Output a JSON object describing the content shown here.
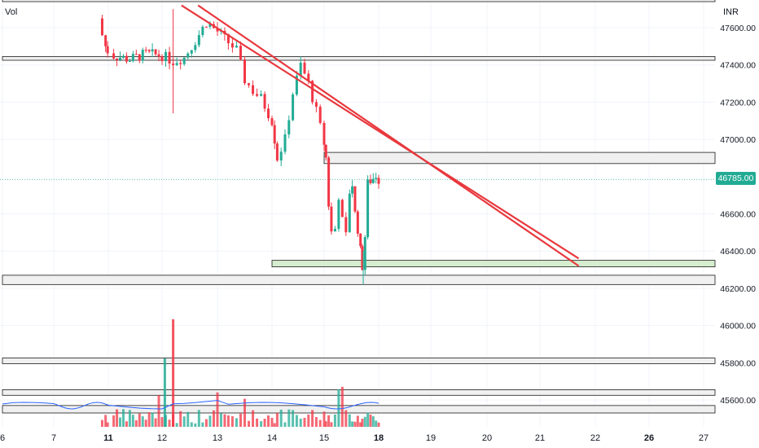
{
  "header": {
    "volume_label": "Vol",
    "currency": "INR"
  },
  "last_price": {
    "label": "46785.00",
    "value": 46785,
    "color": "#22ab94"
  },
  "colors": {
    "up": "#22ab94",
    "down": "#f23645",
    "trendline": "#e8383d",
    "support_zone": "#d6edcf",
    "zone": "#f0f0f0",
    "volume_ma": "#2962ff"
  },
  "chart_data": {
    "type": "candlestick",
    "y_axis": {
      "ticks": [
        47600,
        47400,
        47200,
        47000,
        46600,
        46400,
        46200,
        46000,
        45800,
        45600
      ],
      "tick_labels": [
        "47600.00",
        "47400.00",
        "47200.00",
        "47000.00",
        "46600.00",
        "46400.00",
        "46200.00",
        "46000.00",
        "45800.00",
        "45600.00"
      ]
    },
    "x_axis": {
      "ticks": [
        6,
        7,
        11,
        12,
        13,
        14,
        15,
        18,
        19,
        20,
        21,
        22,
        26,
        27
      ],
      "tick_labels": [
        "6",
        "7",
        "11",
        "12",
        "13",
        "14",
        "15",
        "18",
        "19",
        "20",
        "21",
        "22",
        "26",
        "27"
      ],
      "bold": [
        "11",
        "18",
        "26"
      ]
    },
    "candles_path": [
      [
        10.4,
        47650
      ],
      [
        10.55,
        47560
      ],
      [
        10.8,
        47500
      ],
      [
        11.1,
        47450
      ],
      [
        11.4,
        47430
      ],
      [
        11.7,
        47460
      ],
      [
        12.0,
        47450
      ],
      [
        12.2,
        47420
      ],
      [
        12.4,
        47440
      ],
      [
        12.6,
        47530
      ],
      [
        12.8,
        47630
      ],
      [
        13.0,
        47580
      ],
      [
        13.2,
        47520
      ],
      [
        13.35,
        47480
      ],
      [
        13.5,
        47320
      ],
      [
        13.65,
        47260
      ],
      [
        13.8,
        47220
      ],
      [
        14.0,
        47100
      ],
      [
        14.1,
        46900
      ],
      [
        14.25,
        47000
      ],
      [
        14.4,
        47250
      ],
      [
        14.55,
        47400
      ],
      [
        14.7,
        47300
      ],
      [
        14.85,
        47150
      ],
      [
        15.0,
        46980
      ],
      [
        15.1,
        46900
      ],
      [
        15.25,
        46650
      ],
      [
        15.4,
        46500
      ],
      [
        15.6,
        46520
      ],
      [
        15.8,
        46700
      ],
      [
        16.0,
        46560
      ],
      [
        16.2,
        46480
      ],
      [
        16.4,
        46720
      ],
      [
        16.55,
        46760
      ],
      [
        16.7,
        46600
      ],
      [
        16.85,
        46520
      ],
      [
        17.0,
        46400
      ],
      [
        17.1,
        46320
      ],
      [
        17.25,
        46480
      ],
      [
        17.4,
        46760
      ],
      [
        17.55,
        46780
      ],
      [
        17.7,
        46790
      ],
      [
        17.85,
        46810
      ],
      [
        18.0,
        46785
      ]
    ],
    "trendlines": [
      {
        "name": "",
        "start": [
          12.35,
          47720
        ],
        "end": [
          21.7,
          46360
        ]
      },
      {
        "name": "",
        "start": [
          12.65,
          47720
        ],
        "end": [
          21.7,
          46320
        ]
      }
    ],
    "zones": [
      {
        "y_top": 47760,
        "y_bottom": 47740,
        "x_start": 6,
        "x_end": 27.5,
        "kind": "resistance"
      },
      {
        "y_top": 47445,
        "y_bottom": 47425,
        "x_start": 6,
        "x_end": 27.5,
        "kind": "resistance"
      },
      {
        "y_top": 46930,
        "y_bottom": 46870,
        "x_start": 15.0,
        "x_end": 27.5,
        "kind": "resistance"
      },
      {
        "y_top": 46350,
        "y_bottom": 46315,
        "x_start": 14.0,
        "x_end": 27.5,
        "kind": "support"
      },
      {
        "y_top": 46270,
        "y_bottom": 46220,
        "x_start": 6,
        "x_end": 27.5,
        "kind": "support"
      },
      {
        "y_top": 45825,
        "y_bottom": 45795,
        "x_start": 6,
        "x_end": 27.5,
        "kind": "support"
      },
      {
        "y_top": 45655,
        "y_bottom": 45625,
        "x_start": 6,
        "x_end": 27.5,
        "kind": "support"
      },
      {
        "y_top": 45570,
        "y_bottom": 45530,
        "x_start": 6,
        "x_end": 27.5,
        "kind": "support"
      }
    ],
    "price_line": 46785,
    "grid": true
  }
}
